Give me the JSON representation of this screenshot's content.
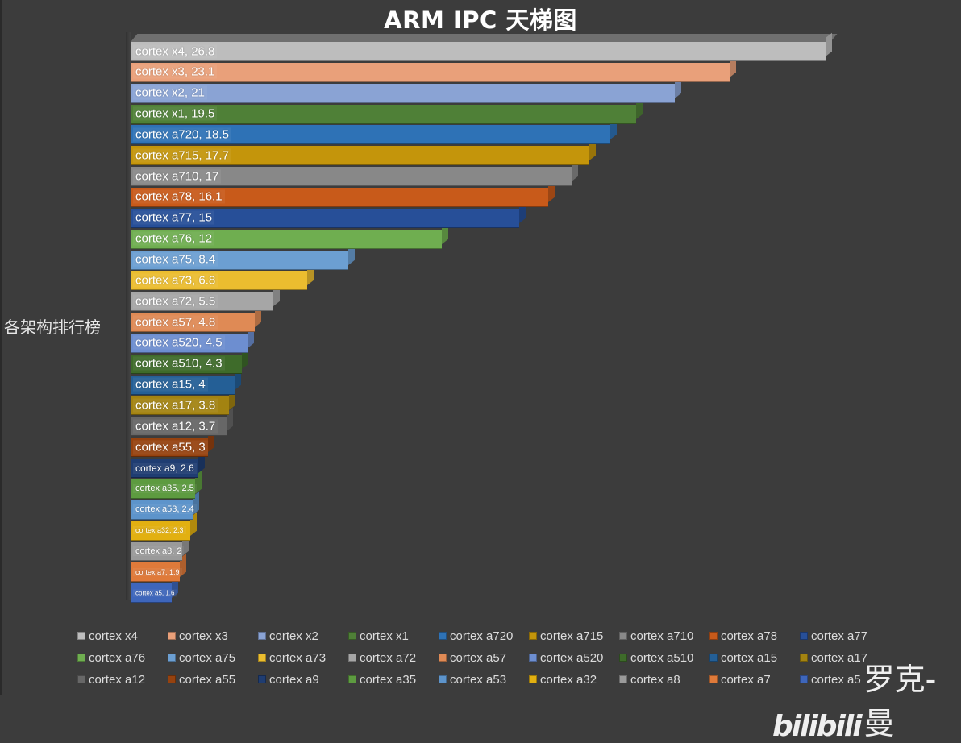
{
  "title": "ARM IPC 天梯图",
  "ylabel": "各架构排行榜",
  "watermark": {
    "logo": "bilibili",
    "author": "罗克-曼"
  },
  "chart_data": {
    "type": "bar",
    "orientation": "horizontal",
    "style": "3d",
    "title": "ARM IPC 天梯图",
    "xlabel": "",
    "ylabel": "各架构排行榜",
    "grid": false,
    "legend_position": "bottom",
    "categories": [
      "cortex x4",
      "cortex x3",
      "cortex x2",
      "cortex x1",
      "cortex a720",
      "cortex a715",
      "cortex a710",
      "cortex a78",
      "cortex a77",
      "cortex a76",
      "cortex a75",
      "cortex a73",
      "cortex a72",
      "cortex a57",
      "cortex a520",
      "cortex a510",
      "cortex a15",
      "cortex a17",
      "cortex a12",
      "cortex a55",
      "cortex a9",
      "cortex a35",
      "cortex a53",
      "cortex a32",
      "cortex a8",
      "cortex a7",
      "cortex a5"
    ],
    "values": [
      26.8,
      23.1,
      21,
      19.5,
      18.5,
      17.7,
      17,
      16.1,
      15,
      12,
      8.4,
      6.8,
      5.5,
      4.8,
      4.5,
      4.3,
      4,
      3.8,
      3.7,
      3,
      2.6,
      2.5,
      2.4,
      2.3,
      2,
      1.9,
      1.6
    ],
    "colors": [
      "#bdbdbd",
      "#e9a07a",
      "#8aa3d4",
      "#4f8037",
      "#2e72b6",
      "#c4950b",
      "#888888",
      "#c85a1a",
      "#274f98",
      "#6fae50",
      "#6c9fd2",
      "#ebbd2f",
      "#a6a6a6",
      "#df8a55",
      "#6d8ed0",
      "#3e6b2a",
      "#245f96",
      "#a38311",
      "#676767",
      "#96420f",
      "#1f3d72",
      "#5d9b40",
      "#5d94cb",
      "#e2b011",
      "#9a9a9a",
      "#df7a3a",
      "#3e66bb"
    ],
    "data_labels": [
      "cortex x4, 26.8",
      "cortex x3, 23.1",
      "cortex x2, 21",
      "cortex x1, 19.5",
      "cortex a720, 18.5",
      "cortex a715, 17.7",
      "cortex a710, 17",
      "cortex a78, 16.1",
      "cortex a77, 15",
      "cortex a76, 12",
      "cortex a75, 8.4",
      "cortex a73, 6.8",
      "cortex a72, 5.5",
      "cortex a57, 4.8",
      "cortex a520, 4.5",
      "cortex a510, 4.3",
      "cortex a15, 4",
      "cortex a17, 3.8",
      "cortex a12, 3.7",
      "cortex a55, 3",
      "cortex a9, 2.6",
      "cortex a35, 2.5",
      "cortex a53, 2.4",
      "cortex a32, 2.3",
      "cortex a8, 2",
      "cortex a7, 1.9",
      "cortex a5, 1.6"
    ],
    "label_font_sizes": [
      15,
      15,
      15,
      15,
      15,
      15,
      15,
      15,
      15,
      15,
      15,
      15,
      15,
      15,
      15,
      15,
      15,
      15,
      15,
      15,
      12,
      11,
      11,
      9,
      11,
      9,
      8
    ],
    "xlim": [
      0,
      26.8
    ]
  }
}
